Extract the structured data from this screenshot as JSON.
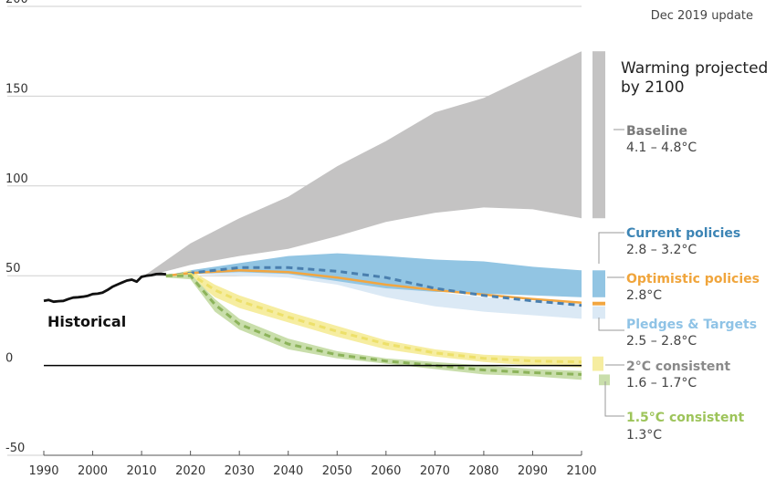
{
  "note": "Dec 2019 update",
  "historical_label": "Historical",
  "sidebar_title": [
    "Warming projected",
    "by 2100"
  ],
  "scenario_labels": [
    {
      "name": "Baseline",
      "range": "4.1 – 4.8°C",
      "color": "#7a7a7a"
    },
    {
      "name": "Current policies",
      "range": "2.8 – 3.2°C",
      "color": "#3d85b5"
    },
    {
      "name": "Optimistic policies",
      "range": "2.8°C",
      "color": "#f0a53c"
    },
    {
      "name": "Pledges & Targets",
      "range": "2.5 – 2.8°C",
      "color": "#8fc3e6"
    },
    {
      "name": "2°C consistent",
      "range": "1.6 – 1.7°C",
      "color": "#8a8a8a"
    },
    {
      "name": "1.5°C consistent",
      "range": "1.3°C",
      "color": "#9dc45a"
    }
  ],
  "chart_data": {
    "type": "area",
    "xlim": [
      1990,
      2100
    ],
    "ylim": [
      -50,
      200
    ],
    "x_ticks": [
      1990,
      2000,
      2010,
      2020,
      2030,
      2040,
      2050,
      2060,
      2070,
      2080,
      2090,
      2100
    ],
    "y_ticks": [
      200,
      150,
      100,
      50,
      0,
      -50
    ],
    "grid": true,
    "colors": {
      "baseline": "#c4c3c3",
      "current": "#92c5e3",
      "pledges": "#dbe9f5",
      "optimistic_line": "#f2a640",
      "current_line": "#4a7fae",
      "two_band": "#f6eda0",
      "two_line": "#ede06a",
      "onefive_band": "#c9deab",
      "onefive_line": "#8cb35a",
      "historical": "#111111",
      "zero_line": "#000000"
    },
    "historical": {
      "x": [
        1990,
        1991,
        1992,
        1993,
        1994,
        1995,
        1996,
        1997,
        1998,
        1999,
        2000,
        2001,
        2002,
        2003,
        2004,
        2005,
        2006,
        2007,
        2008,
        2009,
        2010,
        2011,
        2012,
        2013,
        2014,
        2015
      ],
      "y": [
        36,
        36.5,
        35.5,
        35.8,
        36,
        37,
        37.8,
        38,
        38.3,
        38.8,
        39.8,
        40,
        40.6,
        42,
        43.8,
        45,
        46.2,
        47.3,
        47.8,
        46.7,
        49.4,
        50,
        50.3,
        50.9,
        51,
        50.8
      ]
    },
    "series": [
      {
        "key": "baseline",
        "kind": "band",
        "x": [
          2010,
          2020,
          2030,
          2040,
          2050,
          2060,
          2070,
          2080,
          2090,
          2100
        ],
        "upper": [
          49,
          68,
          82,
          94,
          111,
          125,
          141,
          149,
          162,
          175
        ],
        "lower": [
          49,
          56,
          61,
          65,
          72,
          80,
          85,
          88,
          87,
          82
        ]
      },
      {
        "key": "current",
        "kind": "band",
        "x": [
          2015,
          2020,
          2030,
          2040,
          2050,
          2060,
          2070,
          2080,
          2090,
          2100
        ],
        "upper": [
          50,
          53,
          57,
          61,
          62.5,
          61,
          59,
          58,
          55,
          53
        ],
        "lower": [
          49,
          51,
          52,
          51,
          47,
          43,
          41,
          40,
          39,
          38
        ]
      },
      {
        "key": "pledges",
        "kind": "band",
        "x": [
          2015,
          2020,
          2030,
          2040,
          2050,
          2060,
          2070,
          2080,
          2090,
          2100
        ],
        "upper": [
          50,
          52,
          53,
          52,
          49,
          45,
          41,
          38,
          36,
          35
        ],
        "lower": [
          49,
          51,
          50,
          49,
          45,
          38,
          33,
          30,
          28,
          26
        ]
      },
      {
        "key": "optimistic_line",
        "kind": "line",
        "dashed": false,
        "x": [
          2015,
          2020,
          2030,
          2040,
          2050,
          2060,
          2070,
          2080,
          2090,
          2100
        ],
        "y": [
          50,
          51.5,
          53,
          52,
          49,
          45,
          42,
          39.5,
          37,
          35
        ]
      },
      {
        "key": "current_line",
        "kind": "line",
        "dashed": true,
        "x": [
          2015,
          2020,
          2030,
          2040,
          2050,
          2060,
          2070,
          2080,
          2090,
          2100
        ],
        "y": [
          50,
          51.5,
          54.5,
          54.5,
          52.5,
          49,
          43,
          39,
          36,
          33.5
        ]
      },
      {
        "key": "two_band",
        "kind": "band",
        "x": [
          2015,
          2020,
          2025,
          2030,
          2040,
          2050,
          2060,
          2070,
          2080,
          2090,
          2100
        ],
        "upper": [
          50,
          53,
          45,
          39,
          30,
          22,
          14,
          9,
          6,
          5,
          5
        ],
        "lower": [
          49,
          49,
          38,
          32,
          24,
          16,
          9,
          5,
          2,
          0,
          -1
        ]
      },
      {
        "key": "two_line",
        "kind": "line",
        "dashed": true,
        "x": [
          2015,
          2020,
          2025,
          2030,
          2040,
          2050,
          2060,
          2070,
          2080,
          2090,
          2100
        ],
        "y": [
          50,
          51,
          42,
          36,
          27,
          19,
          12,
          7,
          4,
          2.5,
          2
        ]
      },
      {
        "key": "onefive_band",
        "kind": "band",
        "x": [
          2015,
          2020,
          2025,
          2030,
          2040,
          2050,
          2060,
          2070,
          2080,
          2090,
          2100
        ],
        "upper": [
          50,
          51,
          37,
          26,
          15,
          8,
          4,
          2,
          0,
          -2,
          -3
        ],
        "lower": [
          49,
          48,
          30,
          20,
          9,
          4,
          1,
          -2,
          -5,
          -6,
          -8
        ]
      },
      {
        "key": "onefive_line",
        "kind": "line",
        "dashed": true,
        "x": [
          2015,
          2020,
          2025,
          2030,
          2040,
          2050,
          2060,
          2070,
          2080,
          2090,
          2100
        ],
        "y": [
          50,
          50,
          34,
          23,
          12,
          6,
          2.5,
          0,
          -2.5,
          -4,
          -5
        ]
      }
    ],
    "range_bars": [
      {
        "key": "baseline",
        "low": 82,
        "high": 175,
        "color": "#c4c3c3"
      },
      {
        "key": "current",
        "low": 38,
        "high": 53,
        "color": "#92c5e3"
      },
      {
        "key": "optimistic",
        "low": 33.5,
        "high": 35.5,
        "color": "#f2a640"
      },
      {
        "key": "pledges",
        "low": 26,
        "high": 33,
        "color": "#dbe9f5"
      },
      {
        "key": "two",
        "low": -3,
        "high": 5,
        "color": "#f6eda0"
      },
      {
        "key": "onefive",
        "low": -11,
        "high": -5,
        "color": "#c9deab"
      }
    ]
  }
}
